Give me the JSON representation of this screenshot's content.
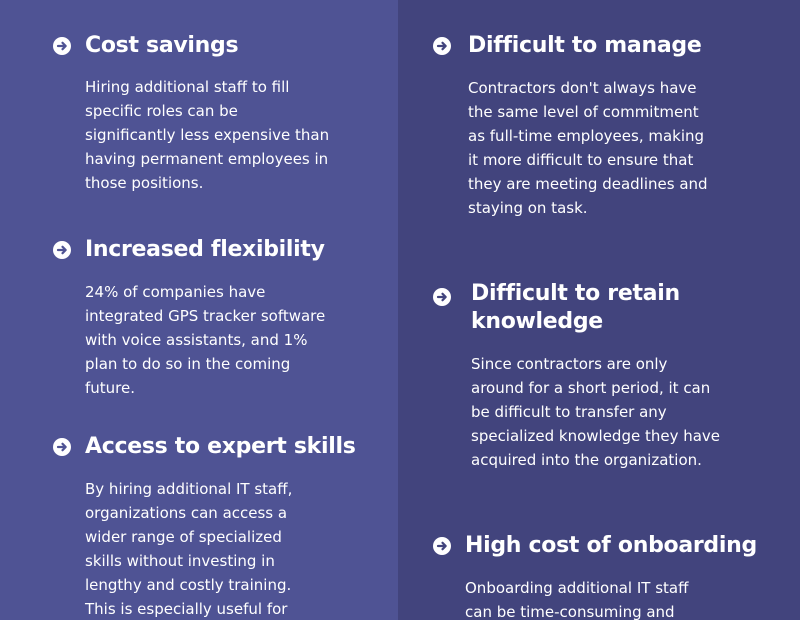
{
  "colors": {
    "left_panel_bg": "#4f5394",
    "right_panel_bg": "#42447d",
    "text": "#ffffff",
    "icon_bg": "#ffffff"
  },
  "left_column": {
    "items": [
      {
        "icon": "arrow-right-circle-icon",
        "title": "Cost savings",
        "body": "Hiring additional staff to fill specific roles can be significantly less expensive than having permanent employees in those positions."
      },
      {
        "icon": "arrow-right-circle-icon",
        "title": "Increased flexibility",
        "body": "24% of companies have integrated GPS tracker software with voice assistants, and 1% plan to do so in the coming future."
      },
      {
        "icon": "arrow-right-circle-icon",
        "title": "Access to expert skills",
        "body": "By hiring additional IT staff, organizations can access a wider range of specialized skills without investing in lengthy and costly training. This is especially useful for"
      }
    ]
  },
  "right_column": {
    "items": [
      {
        "icon": "arrow-right-circle-icon",
        "title": "Difficult to manage",
        "body": "Contractors don't always have the same level of commitment as full-time employees, making it more difficult to ensure that they are meeting deadlines and staying on task."
      },
      {
        "icon": "arrow-right-circle-icon",
        "title": "Difficult to retain knowledge",
        "body": "Since contractors are only around for a short period, it can be difficult to transfer any specialized knowledge they have acquired into the organization."
      },
      {
        "icon": "arrow-right-circle-icon",
        "title": "High cost of onboarding",
        "body": "Onboarding additional IT staff can be time-consuming and"
      }
    ]
  }
}
